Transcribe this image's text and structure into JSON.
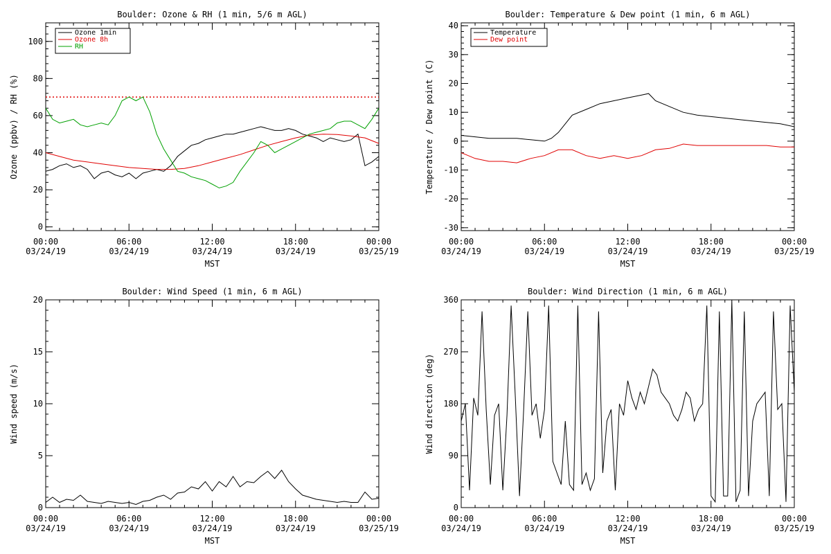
{
  "x_axis": {
    "label": "MST",
    "ticks": [
      {
        "hour": 0,
        "time": "00:00",
        "date": "03/24/19"
      },
      {
        "hour": 6,
        "time": "06:00",
        "date": "03/24/19"
      },
      {
        "hour": 12,
        "time": "12:00",
        "date": "03/24/19"
      },
      {
        "hour": 18,
        "time": "18:00",
        "date": "03/24/19"
      },
      {
        "hour": 24,
        "time": "00:00",
        "date": "03/25/19"
      }
    ]
  },
  "colors": {
    "black": "#000000",
    "red": "#e00000",
    "green": "#00a000"
  },
  "chart_data": [
    {
      "id": "ozone_rh",
      "type": "line",
      "title": "Boulder: Ozone & RH (1 min, 5/6 m AGL)",
      "ylabel": "Ozone (ppbv) / RH (%)",
      "xlim": [
        0,
        24
      ],
      "ylim": [
        -2,
        110
      ],
      "yticks": [
        0,
        20,
        40,
        60,
        80,
        100
      ],
      "legend": "top-left",
      "reference_line": {
        "y": 70,
        "color": "#e00000",
        "style": "dotted"
      },
      "series": [
        {
          "name": "Ozone 1min",
          "color": "#000000",
          "x": [
            0,
            0.5,
            1,
            1.5,
            2,
            2.5,
            3,
            3.5,
            4,
            4.5,
            5,
            5.5,
            6,
            6.5,
            7,
            7.5,
            8,
            8.5,
            9,
            9.5,
            10,
            10.5,
            11,
            11.5,
            12,
            12.5,
            13,
            13.5,
            14,
            14.5,
            15,
            15.5,
            16,
            16.5,
            17,
            17.5,
            18,
            18.5,
            19,
            19.5,
            20,
            20.5,
            21,
            21.5,
            22,
            22.5,
            23,
            23.5,
            24
          ],
          "y": [
            30,
            31,
            33,
            34,
            32,
            33,
            31,
            26,
            29,
            30,
            28,
            27,
            29,
            26,
            29,
            30,
            31,
            30,
            33,
            38,
            41,
            44,
            45,
            47,
            48,
            49,
            50,
            50,
            51,
            52,
            53,
            54,
            53,
            52,
            52,
            53,
            52,
            50,
            49,
            48,
            46,
            48,
            47,
            46,
            47,
            50,
            33,
            35,
            38
          ]
        },
        {
          "name": "Ozone 8h",
          "color": "#e00000",
          "x": [
            0,
            1,
            2,
            3,
            4,
            5,
            6,
            7,
            8,
            9,
            10,
            11,
            12,
            13,
            14,
            15,
            16,
            17,
            18,
            19,
            20,
            21,
            22,
            23,
            24
          ],
          "y": [
            40,
            38,
            36,
            35,
            34,
            33,
            32,
            31.5,
            31,
            31,
            31.5,
            33,
            35,
            37,
            39,
            41.5,
            44,
            46,
            48,
            49.5,
            50,
            49.8,
            49,
            48,
            45
          ]
        },
        {
          "name": "RH",
          "color": "#00a000",
          "x": [
            0,
            0.5,
            1,
            1.5,
            2,
            2.5,
            3,
            3.5,
            4,
            4.5,
            5,
            5.5,
            6,
            6.5,
            7,
            7.5,
            8,
            8.5,
            9,
            9.5,
            10,
            10.5,
            11,
            11.5,
            12,
            12.5,
            13,
            13.5,
            14,
            14.5,
            15,
            15.5,
            16,
            16.5,
            17,
            17.5,
            18,
            18.5,
            19,
            19.5,
            20,
            20.5,
            21,
            21.5,
            22,
            22.5,
            23,
            23.5,
            24
          ],
          "y": [
            64,
            58,
            56,
            57,
            58,
            55,
            54,
            55,
            56,
            55,
            60,
            68,
            70,
            68,
            70,
            62,
            50,
            42,
            36,
            30,
            29,
            27,
            26,
            25,
            23,
            21,
            22,
            24,
            30,
            35,
            40,
            46,
            44,
            40,
            42,
            44,
            46,
            48,
            50,
            51,
            52,
            53,
            56,
            57,
            57,
            55,
            53,
            58,
            64
          ]
        }
      ]
    },
    {
      "id": "temp_dew",
      "type": "line",
      "title": "Boulder: Temperature & Dew point (1 min, 6 m AGL)",
      "ylabel": "Temperature / Dew point (C)",
      "xlim": [
        0,
        24
      ],
      "ylim": [
        -31,
        41
      ],
      "yticks": [
        -30,
        -20,
        -10,
        0,
        10,
        20,
        30,
        40
      ],
      "legend": "top-left",
      "series": [
        {
          "name": "Temperature",
          "color": "#000000",
          "x": [
            0,
            1,
            2,
            3,
            4,
            5,
            6,
            6.5,
            7,
            7.5,
            8,
            9,
            10,
            11,
            12,
            13,
            13.5,
            14,
            15,
            16,
            17,
            18,
            19,
            20,
            21,
            22,
            23,
            24
          ],
          "y": [
            2,
            1.5,
            1,
            1,
            1,
            0.5,
            0,
            1,
            3,
            6,
            9,
            11,
            13,
            14,
            15,
            16,
            16.5,
            14,
            12,
            10,
            9,
            8.5,
            8,
            7.5,
            7,
            6.5,
            6,
            5
          ]
        },
        {
          "name": "Dew point",
          "color": "#e00000",
          "x": [
            0,
            1,
            2,
            3,
            4,
            5,
            6,
            7,
            8,
            9,
            10,
            11,
            12,
            13,
            14,
            15,
            16,
            17,
            18,
            19,
            20,
            21,
            22,
            23,
            24
          ],
          "y": [
            -4,
            -6,
            -7,
            -7,
            -7.5,
            -6,
            -5,
            -3,
            -3,
            -5,
            -6,
            -5,
            -6,
            -5,
            -3,
            -2.5,
            -1,
            -1.5,
            -1.5,
            -1.5,
            -1.5,
            -1.5,
            -1.5,
            -2,
            -2
          ]
        }
      ]
    },
    {
      "id": "wind_speed",
      "type": "line",
      "title": "Boulder: Wind Speed (1 min, 6 m AGL)",
      "ylabel": "Wind speed (m/s)",
      "xlim": [
        0,
        24
      ],
      "ylim": [
        0,
        20
      ],
      "yticks": [
        0,
        5,
        10,
        15,
        20
      ],
      "series": [
        {
          "color": "#000000",
          "x": [
            0,
            0.5,
            1,
            1.5,
            2,
            2.5,
            3,
            3.5,
            4,
            4.5,
            5,
            5.5,
            6,
            6.5,
            7,
            7.5,
            8,
            8.5,
            9,
            9.5,
            10,
            10.5,
            11,
            11.5,
            12,
            12.5,
            13,
            13.5,
            14,
            14.5,
            15,
            15.5,
            16,
            16.5,
            17,
            17.5,
            18,
            18.5,
            19,
            19.5,
            20,
            20.5,
            21,
            21.5,
            22,
            22.5,
            23,
            23.5,
            24
          ],
          "y": [
            0.5,
            1,
            0.5,
            0.8,
            0.7,
            1.2,
            0.6,
            0.5,
            0.4,
            0.6,
            0.5,
            0.4,
            0.5,
            0.3,
            0.6,
            0.7,
            1,
            1.2,
            0.8,
            1.4,
            1.5,
            2,
            1.8,
            2.5,
            1.6,
            2.5,
            2,
            3,
            2,
            2.5,
            2.4,
            3,
            3.5,
            2.8,
            3.6,
            2.5,
            1.8,
            1.2,
            1,
            0.8,
            0.7,
            0.6,
            0.5,
            0.6,
            0.5,
            0.5,
            1.5,
            0.8,
            0.9
          ]
        }
      ]
    },
    {
      "id": "wind_direction",
      "type": "line",
      "title": "Boulder: Wind Direction (1 min, 6 m AGL)",
      "ylabel": "Wind direction (deg)",
      "xlim": [
        0,
        24
      ],
      "ylim": [
        0,
        360
      ],
      "yticks": [
        0,
        90,
        180,
        270,
        360
      ],
      "series": [
        {
          "color": "#000000",
          "x": [
            0,
            0.3,
            0.6,
            0.9,
            1.2,
            1.5,
            1.8,
            2.1,
            2.4,
            2.7,
            3,
            3.3,
            3.6,
            3.9,
            4.2,
            4.5,
            4.8,
            5.1,
            5.4,
            5.7,
            6,
            6.3,
            6.6,
            6.9,
            7.2,
            7.5,
            7.8,
            8.1,
            8.4,
            8.7,
            9,
            9.3,
            9.6,
            9.9,
            10.2,
            10.5,
            10.8,
            11.1,
            11.4,
            11.7,
            12,
            12.3,
            12.6,
            12.9,
            13.2,
            13.5,
            13.8,
            14.1,
            14.4,
            14.7,
            15,
            15.3,
            15.6,
            15.9,
            16.2,
            16.5,
            16.8,
            17.1,
            17.4,
            17.7,
            18,
            18.3,
            18.6,
            18.9,
            19.2,
            19.5,
            19.8,
            20.1,
            20.4,
            20.7,
            21,
            21.3,
            21.6,
            21.9,
            22.2,
            22.5,
            22.8,
            23.1,
            23.4,
            23.7,
            24
          ],
          "y": [
            150,
            180,
            30,
            190,
            160,
            340,
            170,
            40,
            160,
            180,
            30,
            160,
            350,
            190,
            20,
            170,
            340,
            160,
            180,
            120,
            170,
            350,
            80,
            60,
            40,
            150,
            40,
            30,
            350,
            40,
            60,
            30,
            50,
            340,
            60,
            150,
            170,
            30,
            180,
            160,
            220,
            190,
            170,
            200,
            180,
            210,
            240,
            230,
            200,
            190,
            180,
            160,
            150,
            170,
            200,
            190,
            150,
            170,
            180,
            350,
            20,
            10,
            340,
            20,
            20,
            360,
            10,
            30,
            340,
            20,
            150,
            180,
            190,
            200,
            20,
            340,
            170,
            180,
            10,
            350,
            200
          ]
        }
      ]
    }
  ]
}
